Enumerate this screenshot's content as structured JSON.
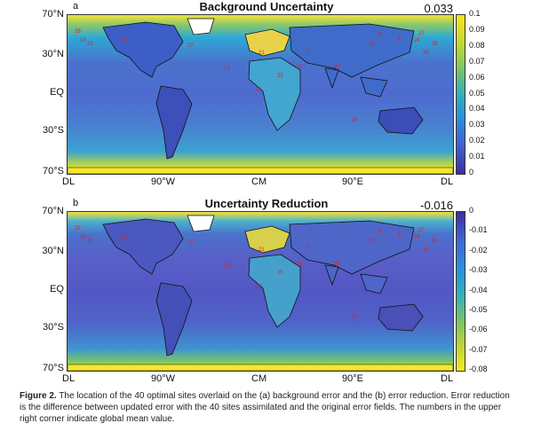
{
  "figure": {
    "caption_label": "Figure 2.",
    "caption_text": " The location of the 40 optimal sites overlaid on the (a) background error and the (b) error reduction. Error reduction is the difference between updated error with the 40 sites assimilated and the original error fields. The numbers in the upper right corner indicate global mean value."
  },
  "axes": {
    "lat_labels": [
      "70°N",
      "30°N",
      "EQ",
      "30°S",
      "70°S"
    ],
    "lon_labels": [
      "DL",
      "90°W",
      "CM",
      "90°E",
      "DL"
    ]
  },
  "panels": [
    {
      "letter": "a",
      "title": "Background Uncertainty",
      "mean": "0.033",
      "colorbar_ticks": [
        "0.1",
        "0.09",
        "0.08",
        "0.07",
        "0.06",
        "0.05",
        "0.04",
        "0.03",
        "0.02",
        "0.01",
        "0"
      ],
      "colors": {
        "top": "#f5e61e",
        "mid": "#23a8d8",
        "bottom": "#3b3fa0"
      }
    },
    {
      "letter": "b",
      "title": "Uncertainty Reduction",
      "mean": "-0.016",
      "colorbar_ticks": [
        "0",
        "-0.01",
        "-0.02",
        "-0.03",
        "-0.04",
        "-0.05",
        "-0.06",
        "-0.07",
        "-0.08"
      ],
      "colors": {
        "top": "#3b3fa0",
        "mid": "#23a8d8",
        "bottom": "#f5e61e"
      }
    }
  ],
  "site_labels": [
    "29",
    "19",
    "32",
    "16",
    "17",
    "13",
    "21",
    "25",
    "12",
    "35",
    "8",
    "6",
    "24",
    "38",
    "27",
    "20",
    "15",
    "22",
    "3",
    "36"
  ]
}
